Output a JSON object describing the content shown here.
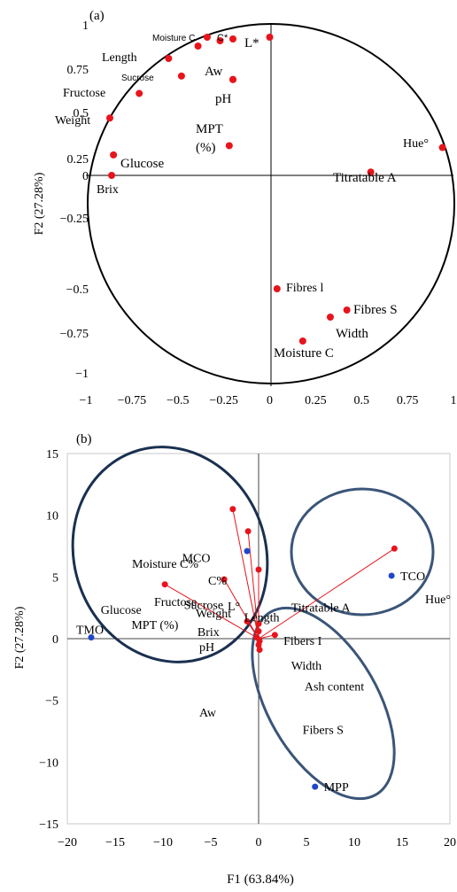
{
  "colors": {
    "variable": "#e8141c",
    "sample": "#1f47c8",
    "circle": "#000000",
    "ellipse": "#3a5578",
    "axis": "#000000"
  },
  "chart_data": [
    {
      "panel": "(a)",
      "type": "scatter",
      "title": "",
      "xlabel": "",
      "ylabel": "F2 (27.28%)",
      "xlim": [
        -1,
        1
      ],
      "ylim": [
        -1,
        1
      ],
      "x_ticks": [
        "-1",
        "-0.75",
        "-0.5",
        "-0.25",
        "0",
        "0.25",
        "0.5",
        "0.75",
        "1"
      ],
      "y_ticks": [
        "1",
        "0.75",
        "0.5",
        "0.25",
        "0",
        "-0.25",
        "-0.5",
        "-0.75",
        "-1"
      ],
      "points": [
        {
          "label": "Moisture C",
          "x": -0.34,
          "y": 0.93
        },
        {
          "label": "C*",
          "x": -0.27,
          "y": 0.91
        },
        {
          "label": "L*",
          "x": -0.2,
          "y": 0.92
        },
        {
          "label": "",
          "x": 0.0,
          "y": 0.93
        },
        {
          "label": "",
          "x": -0.39,
          "y": 0.88
        },
        {
          "label": "Length",
          "x": -0.55,
          "y": 0.81
        },
        {
          "label": "Sucrose",
          "x": -0.48,
          "y": 0.71
        },
        {
          "label": "Aw",
          "x": -0.2,
          "y": 0.69
        },
        {
          "label": "pH",
          "x": -0.2,
          "y": 0.69
        },
        {
          "label": "Fructose",
          "x": -0.71,
          "y": 0.61
        },
        {
          "label": "Weight",
          "x": -0.87,
          "y": 0.47
        },
        {
          "label": "MPT (%)",
          "x": -0.22,
          "y": 0.32
        },
        {
          "label": "Glucose",
          "x": -0.85,
          "y": 0.27
        },
        {
          "label": "Brix",
          "x": -0.86,
          "y": 0.0
        },
        {
          "label": "Hue°",
          "x": 0.94,
          "y": 0.31
        },
        {
          "label": "Titratable A",
          "x": 0.55,
          "y": 0.05
        },
        {
          "label": "Fibres l",
          "x": 0.04,
          "y": -0.5
        },
        {
          "label": "Fibres S",
          "x": 0.42,
          "y": -0.62
        },
        {
          "label": "Width",
          "x": 0.33,
          "y": -0.66
        },
        {
          "label": "Moisture C",
          "x": 0.18,
          "y": -0.8
        }
      ]
    },
    {
      "panel": "(b)",
      "type": "scatter",
      "title": "",
      "xlabel": "F1 (63.84%)",
      "ylabel": "F2 (27.28%)",
      "xlim": [
        -20,
        20
      ],
      "ylim": [
        -15,
        15
      ],
      "x_ticks": [
        "-20",
        "-15",
        "-10",
        "-5",
        "0",
        "5",
        "10",
        "15",
        "20"
      ],
      "y_ticks": [
        "15",
        "10",
        "5",
        "0",
        "-5",
        "-10",
        "-15"
      ],
      "variables": [
        {
          "label": "Moisture C%",
          "x": -2.7,
          "y": 10.5
        },
        {
          "label": "C%",
          "x": -1.1,
          "y": 8.7
        },
        {
          "label": "",
          "x": 0.0,
          "y": 5.6
        },
        {
          "label": "Hue°",
          "x": 14.2,
          "y": 7.3
        },
        {
          "label": "Fructose",
          "x": -9.8,
          "y": 4.4
        },
        {
          "label": "L°",
          "x": -3.6,
          "y": 4.8
        },
        {
          "label": "Weight",
          "x": -1.2,
          "y": 1.4
        },
        {
          "label": "",
          "x": 0.0,
          "y": 1.2
        },
        {
          "label": "",
          "x": 0.0,
          "y": 0.6
        },
        {
          "label": "",
          "x": -0.2,
          "y": 0.1
        },
        {
          "label": "",
          "x": 1.7,
          "y": 0.3
        },
        {
          "label": "",
          "x": 0.1,
          "y": -0.2
        },
        {
          "label": "",
          "x": 0.0,
          "y": -0.5
        },
        {
          "label": "",
          "x": 0.1,
          "y": -0.9
        }
      ],
      "samples": [
        {
          "label": "MCO",
          "x": -1.2,
          "y": 7.1
        },
        {
          "label": "TCO",
          "x": 13.9,
          "y": 5.1
        },
        {
          "label": "TMO",
          "x": -17.5,
          "y": 0.1
        },
        {
          "label": "MPP",
          "x": 5.9,
          "y": -12.0
        }
      ],
      "text_labels": [
        {
          "text": "MCO",
          "x": -8.0,
          "y": 6.2
        },
        {
          "text": "Glucose",
          "x": -16.5,
          "y": 2.0
        },
        {
          "text": "Sucrose",
          "x": -7.8,
          "y": 2.4
        },
        {
          "text": "Length",
          "x": -1.5,
          "y": 1.4
        },
        {
          "text": "MPT (%)",
          "x": -13.3,
          "y": 0.8
        },
        {
          "text": "Brix",
          "x": -6.4,
          "y": 0.2
        },
        {
          "text": "pH",
          "x": -6.2,
          "y": -1.0
        },
        {
          "text": "Titratable A",
          "x": 3.4,
          "y": 2.2
        },
        {
          "text": "Fibers I",
          "x": 2.6,
          "y": -0.5
        },
        {
          "text": "Width",
          "x": 3.4,
          "y": -2.5
        },
        {
          "text": "Ash content",
          "x": 4.8,
          "y": -4.2
        },
        {
          "text": "Aw",
          "x": -6.2,
          "y": -6.3
        },
        {
          "text": "Fibers S",
          "x": 4.6,
          "y": -7.7
        }
      ],
      "groups": [
        "MCO + TMO cluster",
        "TCO cluster",
        "MPP cluster"
      ]
    }
  ]
}
